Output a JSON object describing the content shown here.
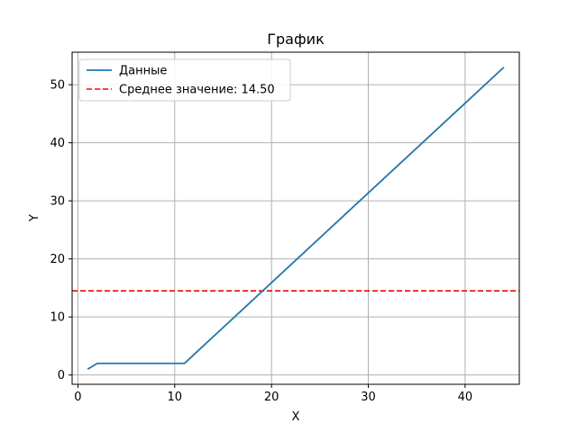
{
  "chart_data": {
    "type": "line",
    "title": "График",
    "xlabel": "X",
    "ylabel": "Y",
    "xlim": [
      -0.6,
      45.6
    ],
    "ylim": [
      -1.6,
      55.6
    ],
    "xticks": [
      0,
      10,
      20,
      30,
      40
    ],
    "yticks": [
      0,
      10,
      20,
      30,
      40,
      50
    ],
    "grid": true,
    "legend_position": "top-left",
    "series": [
      {
        "name": "Данные",
        "color": "#1f77b4",
        "style": "solid",
        "x": [
          1,
          2,
          11,
          44
        ],
        "y": [
          1,
          2,
          2,
          53
        ]
      }
    ],
    "hlines": [
      {
        "name": "Среднее значение: 14.50",
        "y": 14.5,
        "color": "#ff0000",
        "style": "dashed"
      }
    ]
  }
}
